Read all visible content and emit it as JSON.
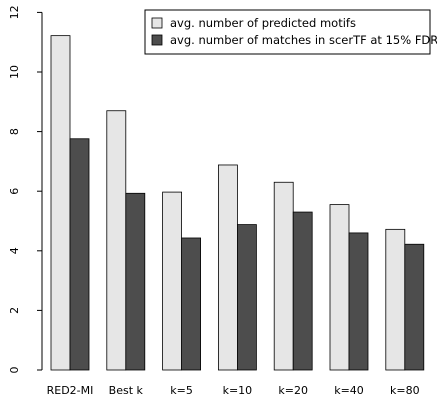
{
  "chart_data": {
    "type": "bar",
    "title": "",
    "xlabel": "",
    "ylabel": "",
    "categories": [
      "RED2-MI",
      "Best k",
      "k=5",
      "k=10",
      "k=20",
      "k=40",
      "k=80"
    ],
    "series": [
      {
        "name": "avg. number of predicted motifs",
        "color": "#e6e6e6",
        "values": [
          11.22,
          8.7,
          5.97,
          6.88,
          6.3,
          5.55,
          4.72
        ]
      },
      {
        "name": "avg. number of matches in scerTF at 15% FDR",
        "color": "#4d4d4d",
        "values": [
          7.76,
          5.93,
          4.43,
          4.88,
          5.3,
          4.6,
          4.22
        ]
      }
    ],
    "ylim": [
      0,
      12
    ],
    "yticks": [
      0,
      2,
      4,
      6,
      8,
      10,
      12
    ],
    "grid": false,
    "legend_position": "top-right"
  }
}
